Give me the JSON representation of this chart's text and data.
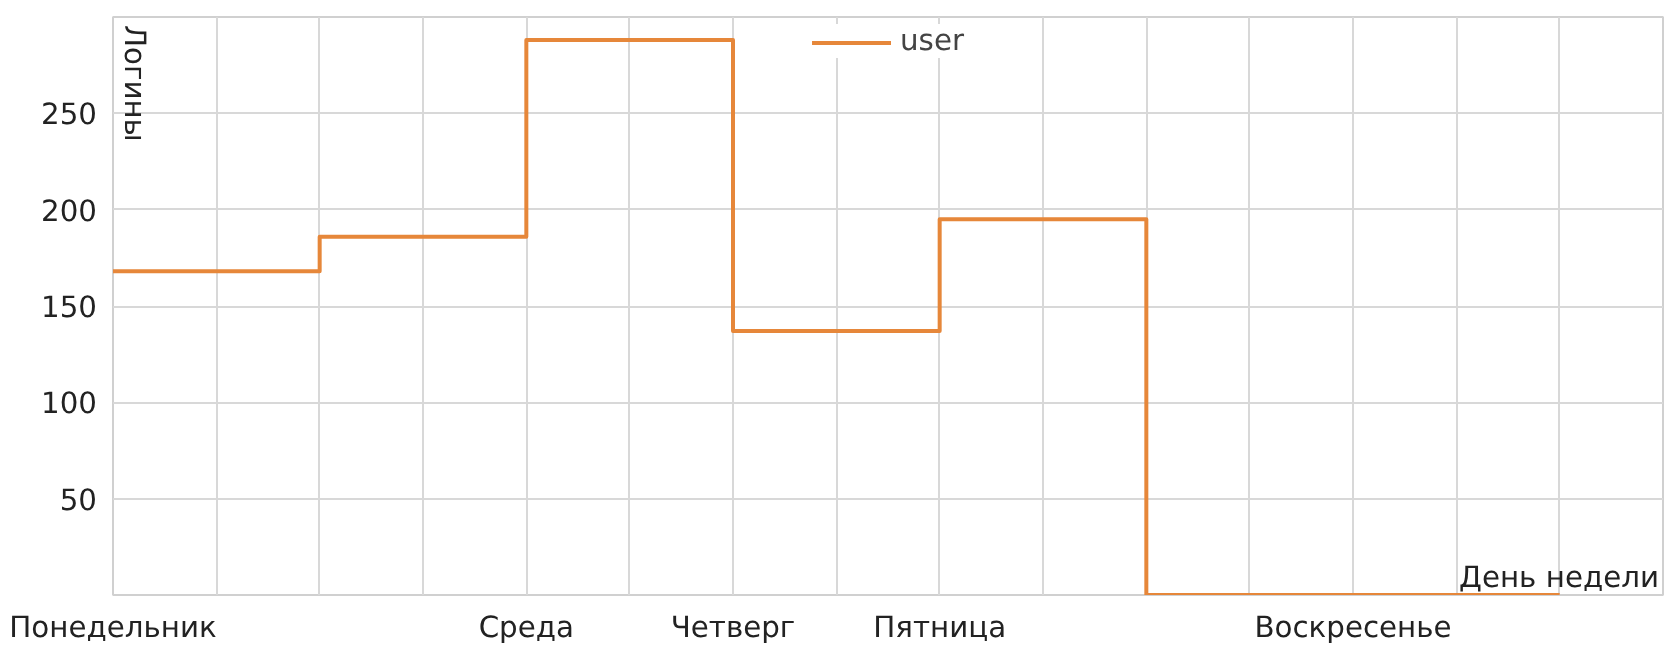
{
  "chart_data": {
    "type": "step",
    "xlabel": "День недели",
    "ylabel": "Логины",
    "categories": [
      "Понедельник",
      null,
      "Среда",
      "Четверг",
      "Пятница",
      null,
      "Воскресенье",
      null
    ],
    "series": [
      {
        "name": "user",
        "color": "#e6873a",
        "values": [
          168,
          186,
          288,
          137,
          195,
          0,
          0,
          0
        ]
      }
    ],
    "ylim": [
      0,
      300
    ],
    "yticks": [
      50,
      100,
      150,
      200,
      250
    ],
    "grid": true,
    "legend": "top",
    "line_style": "solid"
  }
}
